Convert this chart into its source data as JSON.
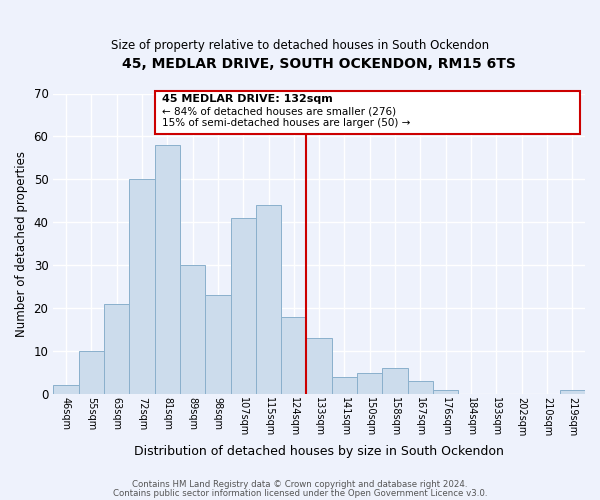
{
  "title": "45, MEDLAR DRIVE, SOUTH OCKENDON, RM15 6TS",
  "subtitle": "Size of property relative to detached houses in South Ockendon",
  "xlabel": "Distribution of detached houses by size in South Ockendon",
  "ylabel": "Number of detached properties",
  "bar_labels": [
    "46sqm",
    "55sqm",
    "63sqm",
    "72sqm",
    "81sqm",
    "89sqm",
    "98sqm",
    "107sqm",
    "115sqm",
    "124sqm",
    "133sqm",
    "141sqm",
    "150sqm",
    "158sqm",
    "167sqm",
    "176sqm",
    "184sqm",
    "193sqm",
    "202sqm",
    "210sqm",
    "219sqm"
  ],
  "bar_heights": [
    2,
    10,
    21,
    50,
    58,
    30,
    23,
    41,
    44,
    18,
    13,
    4,
    5,
    6,
    3,
    1,
    0,
    0,
    0,
    0,
    1
  ],
  "bar_color": "#ccdcec",
  "bar_edge_color": "#8ab0cc",
  "vline_color": "#cc0000",
  "annotation_title": "45 MEDLAR DRIVE: 132sqm",
  "annotation_line1": "← 84% of detached houses are smaller (276)",
  "annotation_line2": "15% of semi-detached houses are larger (50) →",
  "annotation_box_edge": "#cc0000",
  "ylim": [
    0,
    70
  ],
  "yticks": [
    0,
    10,
    20,
    30,
    40,
    50,
    60,
    70
  ],
  "footnote1": "Contains HM Land Registry data © Crown copyright and database right 2024.",
  "footnote2": "Contains public sector information licensed under the Open Government Licence v3.0.",
  "background_color": "#eef2fc",
  "grid_color": "#ffffff"
}
